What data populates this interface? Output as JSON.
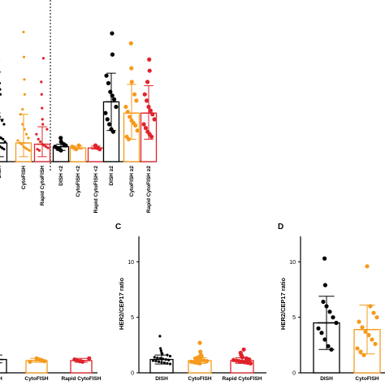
{
  "colors": {
    "DISH": "#000000",
    "CytoFISH": "#f59a1c",
    "Rapid CytoFISH": "#e0222a"
  },
  "chart_data": [
    {
      "panel": "top",
      "type": "bar",
      "categories": [
        "DISH",
        "CytoFISH",
        "Rapid CytoFISH",
        "DISH <2",
        "CytoFISH <2",
        "Rapid CytoFISH <2",
        "DISH ≥2",
        "CytoFISH ≥2",
        "Rapid CytoFISH ≥2"
      ],
      "ylim": [
        0,
        12
      ],
      "means": [
        1.5,
        1.5,
        1.4,
        1.2,
        1.1,
        1.1,
        4.8,
        3.9,
        3.9
      ],
      "sd_upper": [
        3.4,
        3.8,
        2.8,
        1.4,
        1.25,
        1.25,
        7.1,
        6.2,
        6.1
      ],
      "sd_lower": [
        0.4,
        0.4,
        0.4,
        0.9,
        1.0,
        1.0,
        2.5,
        1.8,
        1.8
      ],
      "points": [
        [
          11.5,
          9.7,
          8.2,
          7.2,
          6.3,
          5.8,
          5.4,
          4.9,
          4.3,
          3.9,
          3.6,
          3.3,
          3.0,
          2.7,
          2.4,
          2.2,
          2.0,
          1.9,
          1.8,
          1.6,
          1.5,
          1.4,
          1.3,
          1.2,
          1.1,
          1.0,
          0.9
        ],
        [
          10.4,
          8.4,
          6.6,
          5.4,
          4.2,
          3.8,
          3.0,
          2.6,
          2.2,
          1.9,
          1.7,
          1.5,
          1.4,
          1.2,
          1.1,
          1.0,
          0.9
        ],
        [
          8.3,
          6.4,
          5.4,
          4.3,
          3.4,
          3.0,
          2.6,
          2.2,
          1.8,
          1.6,
          1.4,
          1.3,
          1.2,
          1.1,
          1.0,
          0.9
        ],
        [
          1.9,
          1.6,
          1.4,
          1.3,
          1.2,
          1.1,
          1.0,
          0.9
        ],
        [
          1.3,
          1.2,
          1.1,
          1.0
        ],
        [
          1.3,
          1.2,
          1.1,
          1.0
        ],
        [
          10.3,
          8.6,
          6.9,
          6.3,
          5.6,
          5.3,
          5.0,
          4.4,
          3.9,
          3.4,
          3.0,
          2.6,
          2.4
        ],
        [
          9.5,
          7.5,
          6.4,
          5.4,
          4.9,
          4.4,
          4.0,
          3.6,
          3.3,
          3.1,
          2.9,
          2.5,
          2.0,
          1.8
        ],
        [
          8.2,
          7.3,
          6.4,
          5.4,
          4.9,
          4.4,
          4.1,
          3.8,
          3.4,
          3.0,
          2.7,
          2.4,
          2.2,
          2.0
        ]
      ]
    },
    {
      "panel": "B",
      "type": "bar",
      "categories": [
        "DISH",
        "CytoFISH",
        "Rapid CytoFISH"
      ],
      "ylim": [
        0,
        12
      ],
      "means": [
        1.2,
        1.1,
        1.1
      ],
      "sd_upper": [
        1.6,
        1.3,
        1.3
      ],
      "sd_lower": [
        0.9,
        0.95,
        0.95
      ],
      "points": [
        [
          1.4,
          1.2,
          1.1,
          1.0
        ],
        [
          1.3,
          1.2,
          1.1,
          1.05,
          1.0
        ],
        [
          1.3,
          1.2,
          1.1,
          1.05,
          1.0
        ]
      ]
    },
    {
      "panel": "C",
      "type": "bar",
      "label": "C",
      "categories": [
        "DISH",
        "CytoFISH",
        "Rapid CytoFISH"
      ],
      "ylabel": "HER2/CEP17 ratio",
      "ylim": [
        0,
        12
      ],
      "yticks": [
        0,
        5,
        10
      ],
      "means": [
        1.2,
        1.1,
        1.1
      ],
      "sd_upper": [
        1.6,
        1.35,
        1.35
      ],
      "sd_lower": [
        0.8,
        0.85,
        0.85
      ],
      "points": [
        [
          3.3,
          2.2,
          2.0,
          1.8,
          1.7,
          1.6,
          1.5,
          1.4,
          1.35,
          1.3,
          1.25,
          1.2,
          1.15,
          1.1,
          1.05,
          1.0,
          0.95,
          0.9,
          0.85,
          0.8
        ],
        [
          2.7,
          1.9,
          1.6,
          1.5,
          1.4,
          1.3,
          1.2,
          1.15,
          1.1,
          1.05,
          1.0,
          0.95,
          0.9,
          0.85
        ],
        [
          2.1,
          1.8,
          1.6,
          1.5,
          1.4,
          1.3,
          1.2,
          1.15,
          1.1,
          1.05,
          1.0,
          0.95,
          0.9,
          0.85
        ]
      ]
    },
    {
      "panel": "D",
      "type": "bar",
      "label": "D",
      "categories": [
        "DISH",
        "CytoFISH"
      ],
      "ylabel": "HER2/CEP17 ratio",
      "ylim": [
        0,
        12
      ],
      "yticks": [
        0,
        5,
        10
      ],
      "means": [
        4.5,
        3.9
      ],
      "sd_upper": [
        6.9,
        6.1
      ],
      "sd_lower": [
        2.1,
        1.7
      ],
      "points": [
        [
          10.3,
          7.9,
          6.4,
          6.0,
          5.5,
          5.0,
          4.5,
          4.0,
          3.6,
          3.0,
          2.4,
          2.1
        ],
        [
          9.6,
          6.0,
          5.4,
          5.0,
          4.6,
          4.1,
          3.7,
          3.4,
          3.0,
          2.6,
          2.2,
          1.9,
          1.6
        ]
      ]
    }
  ]
}
